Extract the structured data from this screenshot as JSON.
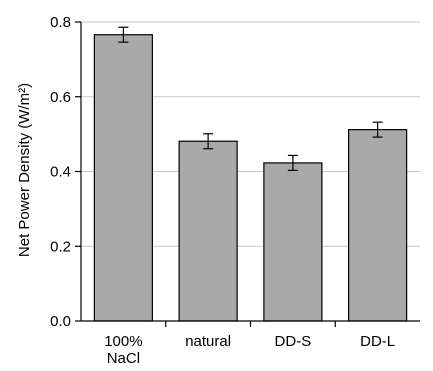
{
  "chart_data": {
    "type": "bar",
    "title": "",
    "xlabel": "",
    "ylabel": "Net Power Density (W/m²)",
    "categories": [
      [
        "100%",
        "NaCl"
      ],
      [
        "natural"
      ],
      [
        "DD-S"
      ],
      [
        "DD-L"
      ]
    ],
    "values": [
      0.766,
      0.481,
      0.423,
      0.512
    ],
    "errors": [
      0.02,
      0.02,
      0.02,
      0.02
    ],
    "ylim": [
      0.0,
      0.8
    ],
    "yticks": [
      "0.0",
      "0.2",
      "0.4",
      "0.6",
      "0.8"
    ],
    "grid": true,
    "bar_color": "#a9a9a9",
    "bar_edge_color": "#000000",
    "grid_color": "#c8c8c8"
  }
}
